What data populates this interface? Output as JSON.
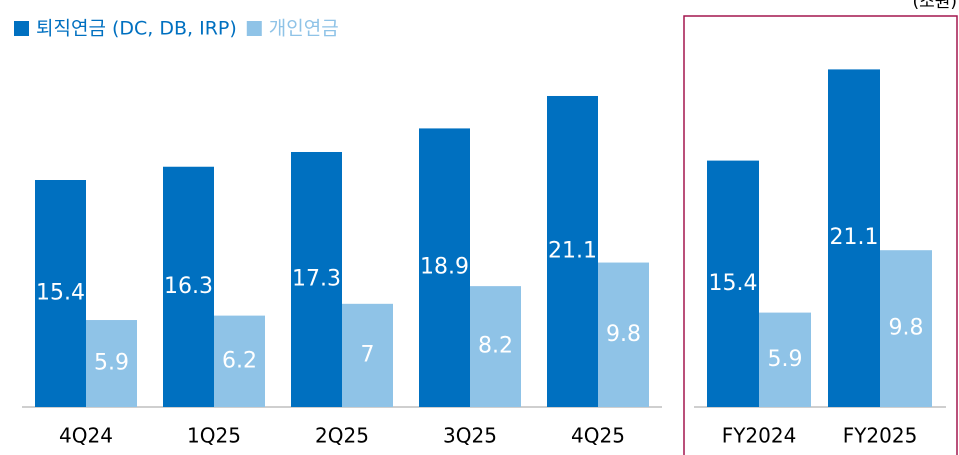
{
  "unit": "(조원)",
  "chart_data": [
    {
      "type": "bar",
      "categories": [
        "4Q24",
        "1Q25",
        "2Q25",
        "3Q25",
        "4Q25"
      ],
      "series": [
        {
          "name": "퇴직연금 (DC, DB, IRP)",
          "color": "#0070c0",
          "values": [
            15.4,
            16.3,
            17.3,
            18.9,
            21.1
          ]
        },
        {
          "name": "개인연금",
          "color": "#8fc3e7",
          "values": [
            5.9,
            6.2,
            7.0,
            8.2,
            9.8
          ]
        }
      ]
    },
    {
      "type": "bar",
      "categories": [
        "FY2024",
        "FY2025"
      ],
      "series": [
        {
          "color": "#0070c0",
          "values": [
            15.4,
            21.1
          ]
        },
        {
          "color": "#8fc3e7",
          "values": [
            5.9,
            9.8
          ]
        }
      ]
    }
  ]
}
